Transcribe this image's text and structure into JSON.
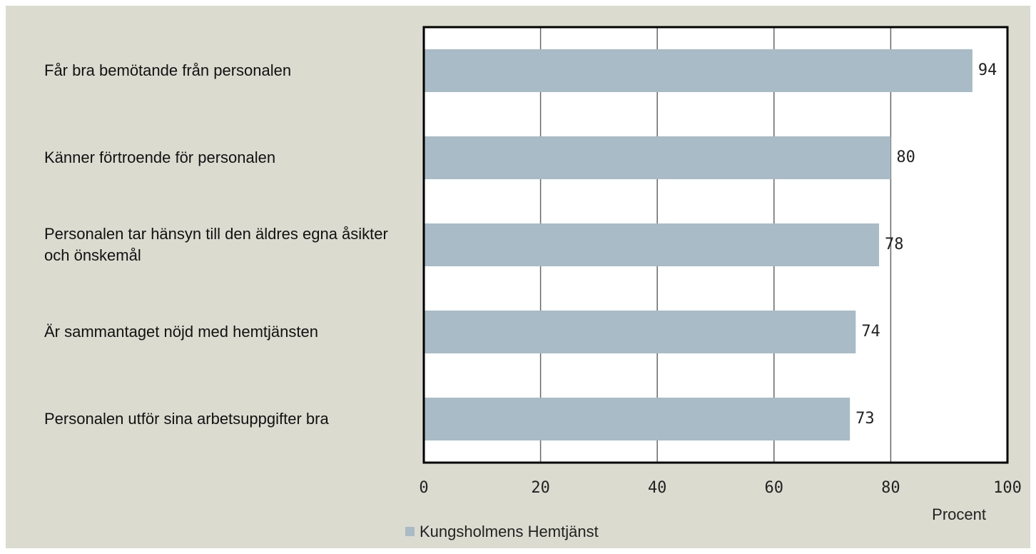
{
  "chart_data": {
    "type": "bar",
    "orientation": "horizontal",
    "categories": [
      "Får bra bemötande från personalen",
      "Känner förtroende för personalen",
      "Personalen tar hänsyn till den äldres egna åsikter och önskemål",
      "Är sammantaget nöjd med hemtjänsten",
      "Personalen utför sina arbetsuppgifter bra"
    ],
    "series": [
      {
        "name": "Kungsholmens Hemtjänst",
        "color": "#a8bbc6",
        "values": [
          94,
          80,
          78,
          74,
          73
        ]
      }
    ],
    "xlim": [
      0,
      100
    ],
    "xticks": [
      0,
      20,
      40,
      60,
      80,
      100
    ],
    "xlabel": "Procent",
    "grid": true
  }
}
